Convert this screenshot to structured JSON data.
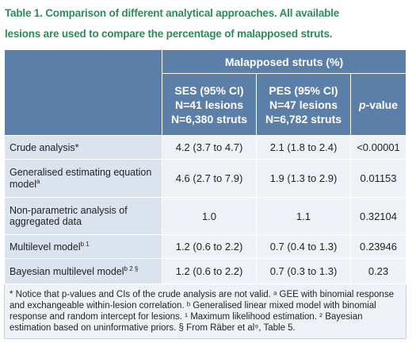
{
  "title_lines": [
    "Table 1. Comparison of different analytical approaches. All available",
    "lesions are used to compare the percentage of malapposed struts."
  ],
  "table": {
    "group_header": "Malapposed struts (%)",
    "columns": [
      {
        "lines": [
          "SES (95% CI)",
          "N=41 lesions",
          "N=6,380 struts"
        ]
      },
      {
        "lines": [
          "PES (95% CI)",
          "N=47 lesions",
          "N=6,782 struts"
        ]
      },
      {
        "italic": "p",
        "text": "-value"
      }
    ],
    "rows": [
      {
        "label": "Crude analysis*",
        "sup": "",
        "cells": [
          "4.2 (3.7 to 4.7)",
          "2.1 (1.8 to 2.4)",
          "<0.00001"
        ]
      },
      {
        "label": "Generalised estimating equation model",
        "sup": "a",
        "cells": [
          "4.6 (2.7 to 7.9)",
          "1.9 (1.3 to 2.9)",
          "0.01153"
        ]
      },
      {
        "label": "Non-parametric analysis of aggregated data",
        "sup": "",
        "cells": [
          "1.0",
          "1.1",
          "0.32104"
        ]
      },
      {
        "label": "Multilevel model",
        "sup": "b 1",
        "cells": [
          "1.2 (0.6 to 2.2)",
          "0.7 (0.4 to 1.3)",
          "0.23946"
        ]
      },
      {
        "label": "Bayesian multilevel model",
        "sup": "b 2 §",
        "cells": [
          "1.2 (0.6 to 2.2)",
          "0.7 (0.3 to 1.3)",
          "0.23"
        ]
      }
    ],
    "footnote": "* Notice that p-values and CIs of the crude analysis are not valid. ᵃ GEE with binomial response and exchangeable within-lesion correlation. ᵇ Generalised linear mixed model with binomial response and random intercept for lesions. ¹ Maximum likelihood estimation. ² Bayesian estimation based on uninformative priors. § From Räber et al⁹, Table 5."
  }
}
